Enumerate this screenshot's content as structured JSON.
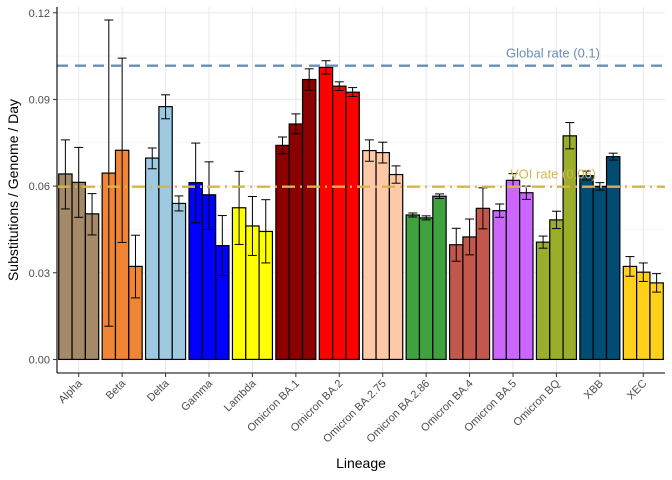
{
  "chart_data": {
    "type": "bar",
    "title": "",
    "xlabel": "Lineage",
    "ylabel": "Substitutions / Genome / Day",
    "ylim": [
      -0.0047,
      0.122
    ],
    "yticks": [
      0.0,
      0.03,
      0.06,
      0.09,
      0.12
    ],
    "ytick_labels": [
      "0.00",
      "0.03",
      "0.06",
      "0.09",
      "0.12"
    ],
    "grid": true,
    "legend": "none",
    "categories": [
      "Alpha",
      "Beta",
      "Delta",
      "Gamma",
      "Lambda",
      "Omicron BA.1",
      "Omicron BA.2",
      "Omicron BA.2.75",
      "Omicron BA.2.86",
      "Omicron BA.4",
      "Omicron BA.5",
      "Omicron BQ",
      "XBB",
      "XEC"
    ],
    "groups": [
      {
        "lineage": "Alpha",
        "color": "#a48a68",
        "bars": [
          {
            "value": 0.0642,
            "lo": 0.0521,
            "hi": 0.076
          },
          {
            "value": 0.0613,
            "lo": 0.0492,
            "hi": 0.0734
          },
          {
            "value": 0.0504,
            "lo": 0.0431,
            "hi": 0.0574
          }
        ]
      },
      {
        "lineage": "Beta",
        "color": "#f08635",
        "bars": [
          {
            "value": 0.0645,
            "lo": 0.0115,
            "hi": 0.1175
          },
          {
            "value": 0.0724,
            "lo": 0.0405,
            "hi": 0.1043
          },
          {
            "value": 0.0322,
            "lo": 0.0213,
            "hi": 0.043
          }
        ]
      },
      {
        "lineage": "Delta",
        "color": "#9ecae1",
        "bars": [
          {
            "value": 0.0697,
            "lo": 0.066,
            "hi": 0.0732
          },
          {
            "value": 0.0875,
            "lo": 0.0833,
            "hi": 0.0916
          },
          {
            "value": 0.054,
            "lo": 0.0514,
            "hi": 0.0566
          }
        ]
      },
      {
        "lineage": "Gamma",
        "color": "#0000ff",
        "bars": [
          {
            "value": 0.0612,
            "lo": 0.0473,
            "hi": 0.0749
          },
          {
            "value": 0.057,
            "lo": 0.045,
            "hi": 0.0684
          },
          {
            "value": 0.0394,
            "lo": 0.029,
            "hi": 0.0498
          }
        ]
      },
      {
        "lineage": "Lambda",
        "color": "#ffff00",
        "bars": [
          {
            "value": 0.0525,
            "lo": 0.0398,
            "hi": 0.0651
          },
          {
            "value": 0.0462,
            "lo": 0.036,
            "hi": 0.0564
          },
          {
            "value": 0.0443,
            "lo": 0.0334,
            "hi": 0.0553
          }
        ]
      },
      {
        "lineage": "Omicron BA.1",
        "color": "#8b0000",
        "bars": [
          {
            "value": 0.0741,
            "lo": 0.0712,
            "hi": 0.077
          },
          {
            "value": 0.0815,
            "lo": 0.0781,
            "hi": 0.085
          },
          {
            "value": 0.0969,
            "lo": 0.0932,
            "hi": 0.1006
          }
        ]
      },
      {
        "lineage": "Omicron BA.2",
        "color": "#ff0000",
        "bars": [
          {
            "value": 0.1011,
            "lo": 0.0988,
            "hi": 0.1034
          },
          {
            "value": 0.0946,
            "lo": 0.0931,
            "hi": 0.0961
          },
          {
            "value": 0.0925,
            "lo": 0.091,
            "hi": 0.0941
          }
        ]
      },
      {
        "lineage": "Omicron BA.2.75",
        "color": "#fdc9a7",
        "bars": [
          {
            "value": 0.0723,
            "lo": 0.0686,
            "hi": 0.076
          },
          {
            "value": 0.0716,
            "lo": 0.068,
            "hi": 0.0752
          },
          {
            "value": 0.064,
            "lo": 0.061,
            "hi": 0.067
          }
        ]
      },
      {
        "lineage": "Omicron BA.2.86",
        "color": "#3ea33e",
        "bars": [
          {
            "value": 0.05,
            "lo": 0.0493,
            "hi": 0.0507
          },
          {
            "value": 0.049,
            "lo": 0.0483,
            "hi": 0.0497
          },
          {
            "value": 0.0565,
            "lo": 0.0557,
            "hi": 0.0573
          }
        ]
      },
      {
        "lineage": "Omicron BA.4",
        "color": "#c1584b",
        "bars": [
          {
            "value": 0.0397,
            "lo": 0.034,
            "hi": 0.0454
          },
          {
            "value": 0.0424,
            "lo": 0.0362,
            "hi": 0.0486
          },
          {
            "value": 0.0523,
            "lo": 0.0452,
            "hi": 0.0594
          }
        ]
      },
      {
        "lineage": "Omicron BA.5",
        "color": "#cc66ff",
        "bars": [
          {
            "value": 0.0515,
            "lo": 0.0492,
            "hi": 0.0538
          },
          {
            "value": 0.062,
            "lo": 0.0598,
            "hi": 0.0643
          },
          {
            "value": 0.0577,
            "lo": 0.0554,
            "hi": 0.06
          }
        ]
      },
      {
        "lineage": "Omicron BQ",
        "color": "#9aae2c",
        "bars": [
          {
            "value": 0.0406,
            "lo": 0.0385,
            "hi": 0.0427
          },
          {
            "value": 0.0483,
            "lo": 0.0453,
            "hi": 0.0513
          },
          {
            "value": 0.0774,
            "lo": 0.0729,
            "hi": 0.082
          }
        ]
      },
      {
        "lineage": "XBB",
        "color": "#004c73",
        "bars": [
          {
            "value": 0.0636,
            "lo": 0.0621,
            "hi": 0.0652
          },
          {
            "value": 0.0599,
            "lo": 0.0586,
            "hi": 0.0612
          },
          {
            "value": 0.0702,
            "lo": 0.069,
            "hi": 0.0714
          }
        ]
      },
      {
        "lineage": "XEC",
        "color": "#ffd11a",
        "bars": [
          {
            "value": 0.0322,
            "lo": 0.0288,
            "hi": 0.0356
          },
          {
            "value": 0.0302,
            "lo": 0.027,
            "hi": 0.0334
          },
          {
            "value": 0.0265,
            "lo": 0.0233,
            "hi": 0.0297
          }
        ]
      }
    ],
    "reference_lines": [
      {
        "label": "Global rate (0.1)",
        "value": 0.1017,
        "color": "#6b8fb4",
        "style": "dashed"
      },
      {
        "label": "VOI rate (0.06)",
        "value": 0.0598,
        "color": "#d9b44a",
        "style": "dashdot"
      }
    ]
  }
}
